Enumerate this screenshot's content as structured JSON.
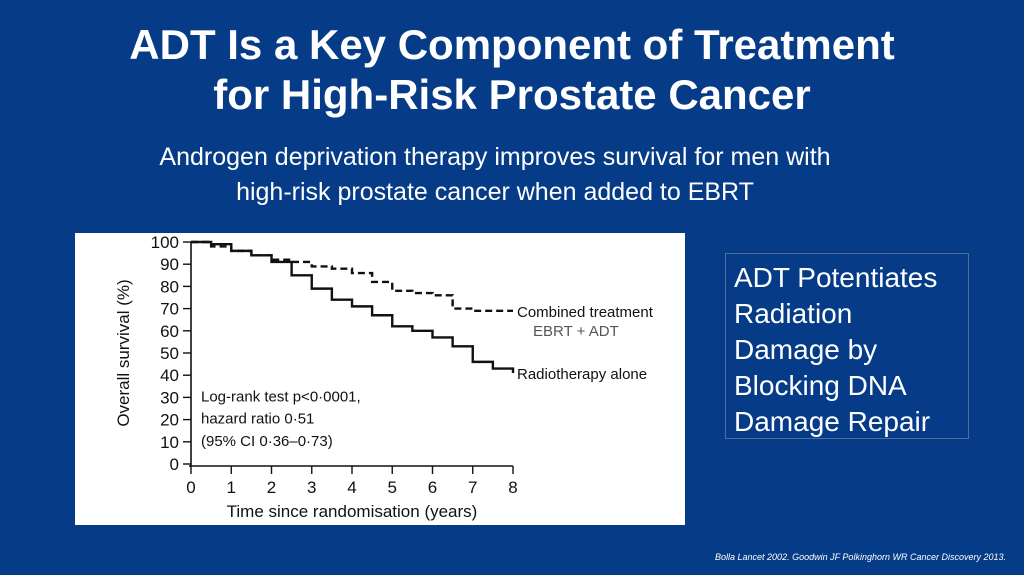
{
  "slide": {
    "title_lines": [
      "ADT Is a Key Component of Treatment",
      "for High-Risk Prostate Cancer"
    ],
    "subtitle_lines": [
      "Androgen deprivation therapy improves survival for men with",
      "high-risk prostate cancer when added to  EBRT"
    ],
    "side_box_lines": [
      "ADT Potentiates",
      "Radiation",
      "Damage by",
      "Blocking DNA",
      "Damage Repair"
    ],
    "citation": "Bolla Lancet 2002. Goodwin JF Polkinghorn WR Cancer Discovery 2013."
  },
  "chart_data": {
    "type": "line",
    "xlabel": "Time since randomisation (years)",
    "ylabel": "Overall survival (%)",
    "xlim": [
      0,
      8
    ],
    "ylim": [
      0,
      100
    ],
    "x_ticks": [
      "0",
      "1",
      "2",
      "3",
      "4",
      "5",
      "6",
      "7",
      "8"
    ],
    "y_ticks": [
      "0",
      "10",
      "20",
      "30",
      "40",
      "50",
      "60",
      "70",
      "80",
      "90",
      "100"
    ],
    "grid": false,
    "annotations": [
      "Log-rank test p<0·0001,",
      "hazard ratio 0·51",
      "(95% CI 0·36–0·73)"
    ],
    "series": [
      {
        "name": "Combined treatment",
        "sub_label": "EBRT + ADT",
        "line_style": "dashed",
        "color": "#111111",
        "x": [
          0,
          0.5,
          1,
          1.5,
          2,
          2.5,
          3,
          3.5,
          4,
          4.5,
          5,
          5.5,
          6,
          6.5,
          7,
          7.5,
          8
        ],
        "y": [
          100,
          98,
          96,
          94,
          92,
          91,
          89,
          88,
          86,
          82,
          78,
          77,
          76,
          70,
          69,
          69,
          69
        ]
      },
      {
        "name": "Radiotherapy alone",
        "line_style": "solid",
        "color": "#111111",
        "x": [
          0,
          0.5,
          1,
          1.5,
          2,
          2.5,
          3,
          3.5,
          4,
          4.5,
          5,
          5.5,
          6,
          6.5,
          7,
          7.5,
          8
        ],
        "y": [
          100,
          99,
          96,
          94,
          91,
          85,
          79,
          74,
          71,
          67,
          62,
          60,
          57,
          53,
          46,
          43,
          41
        ]
      }
    ]
  }
}
